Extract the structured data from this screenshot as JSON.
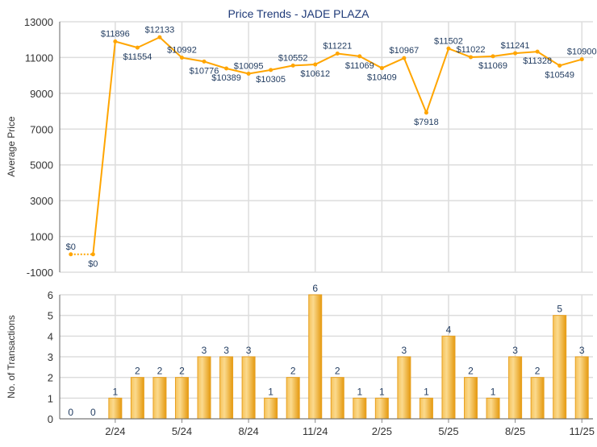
{
  "chart_data": [
    {
      "type": "line",
      "title": "Price Trends - JADE PLAZA",
      "xlabel": "",
      "ylabel": "Average Price",
      "ylim": [
        -1000,
        13000
      ],
      "yticks": [
        "13000",
        "11000",
        "9000",
        "7000",
        "5000",
        "3000",
        "1000",
        "-1000"
      ],
      "ytick_values": [
        13000,
        11000,
        9000,
        7000,
        5000,
        3000,
        1000,
        -1000
      ],
      "grid": true,
      "values": [
        0,
        0,
        11896,
        11554,
        12133,
        10992,
        10776,
        10389,
        10095,
        10305,
        10552,
        10612,
        11221,
        11069,
        10409,
        10967,
        7918,
        11502,
        11022,
        11069,
        11241,
        11328,
        10549,
        10900
      ],
      "labels": [
        "$0",
        "$0",
        "$11896",
        "$11554",
        "$12133",
        "$10992",
        "$10776",
        "$10389",
        "$10095",
        "$10305",
        "$10552",
        "$10612",
        "$11221",
        "$11069",
        "$10409",
        "$10967",
        "$7918",
        "$11502",
        "$11022",
        "$11069",
        "$11241",
        "$11328",
        "$10549",
        "$10900"
      ],
      "line_color": "#FFA500"
    },
    {
      "type": "bar",
      "xlabel": "",
      "ylabel": "No. of Transactions",
      "ylim": [
        0,
        6
      ],
      "yticks": [
        "6",
        "5",
        "4",
        "3",
        "2",
        "1",
        "0"
      ],
      "ytick_values": [
        6,
        5,
        4,
        3,
        2,
        1,
        0
      ],
      "xticks": [
        {
          "index": 2,
          "label": "2/24"
        },
        {
          "index": 5,
          "label": "5/24"
        },
        {
          "index": 8,
          "label": "8/24"
        },
        {
          "index": 11,
          "label": "11/24"
        },
        {
          "index": 14,
          "label": "2/25"
        },
        {
          "index": 17,
          "label": "5/25"
        },
        {
          "index": 20,
          "label": "8/25"
        },
        {
          "index": 23,
          "label": "11/25"
        }
      ],
      "values": [
        0,
        0,
        1,
        2,
        2,
        2,
        3,
        3,
        3,
        1,
        2,
        6,
        2,
        1,
        1,
        3,
        1,
        4,
        2,
        1,
        3,
        2,
        5,
        3
      ],
      "bar_color": "#F2B233"
    }
  ]
}
